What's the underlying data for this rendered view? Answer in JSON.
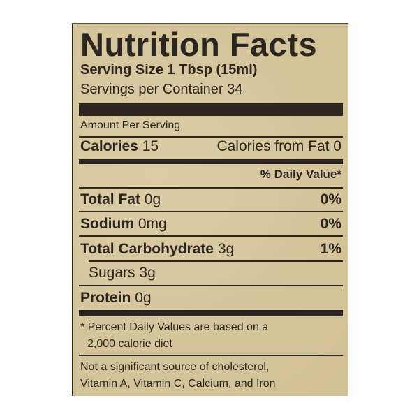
{
  "title": "Nutrition Facts",
  "serving_size": "Serving Size 1 Tbsp (15ml)",
  "servings_per_container": "Servings per Container 34",
  "amount_per_serving": "Amount Per Serving",
  "calories": {
    "label": "Calories",
    "value": "15",
    "from_fat": "Calories from Fat 0"
  },
  "daily_value_header": "% Daily Value*",
  "nutrients": [
    {
      "label": "Total Fat",
      "amount": "0g",
      "dv": "0%"
    },
    {
      "label": "Sodium",
      "amount": "0mg",
      "dv": "0%"
    },
    {
      "label": "Total Carbohydrate",
      "amount": "3g",
      "dv": "1%"
    },
    {
      "label": "Sugars",
      "amount": "3g",
      "dv": ""
    },
    {
      "label": "Protein",
      "amount": "0g",
      "dv": ""
    }
  ],
  "footnote_line1": "* Percent Daily Values are based on a",
  "footnote_line2": "2,000 calorie diet",
  "not_significant_line1": "Not a significant source of cholesterol,",
  "not_significant_line2": "Vitamin A, Vitamin C, Calcium, and Iron",
  "colors": {
    "background": "#d6c59c",
    "ink": "#2b2720"
  }
}
